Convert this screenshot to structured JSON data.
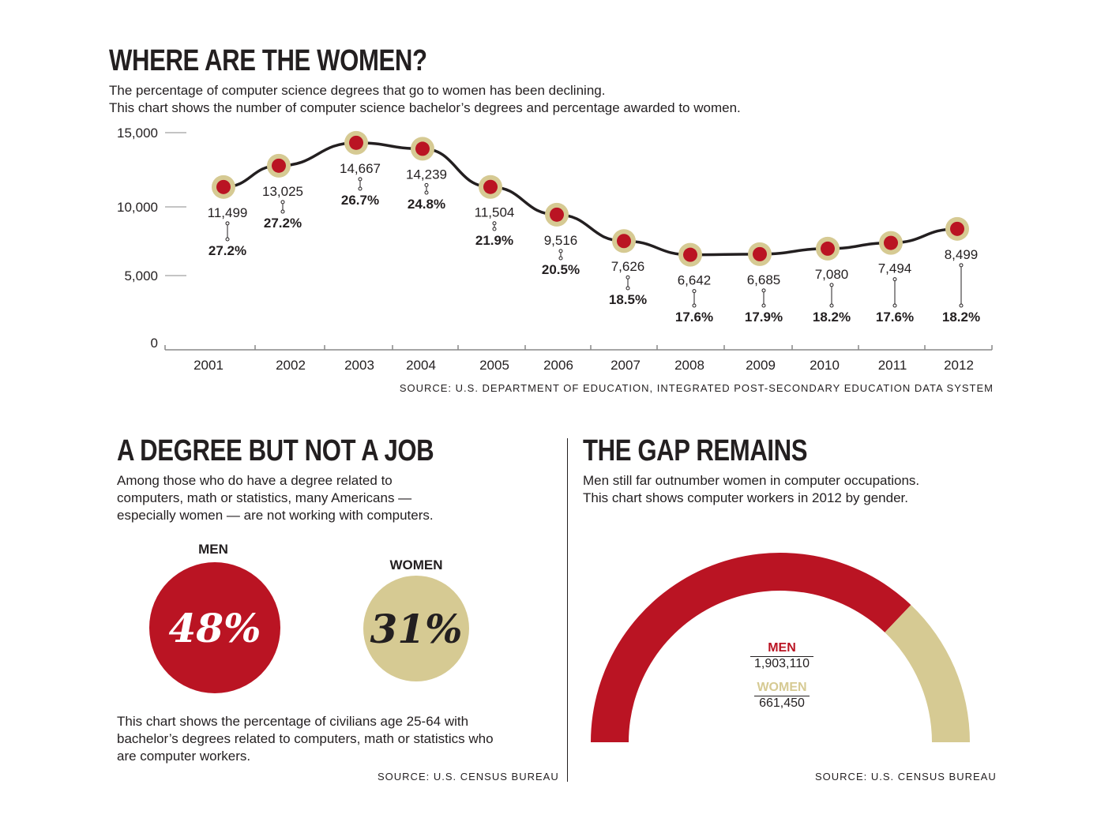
{
  "top": {
    "title": "WHERE ARE THE WOMEN?",
    "subtitle_line1": "The percentage of computer science degrees that go to women has been declining.",
    "subtitle_line2": "This chart shows the number of computer science bachelor’s degrees and percentage awarded to women.",
    "source": "SOURCE: U.S. DEPARTMENT OF EDUCATION, INTEGRATED POST-SECONDARY EDUCATION DATA SYSTEM"
  },
  "left": {
    "title": "A DEGREE BUT NOT A JOB",
    "intro_line1": "Among those who do have a degree related to",
    "intro_line2": "computers, math or statistics, many Americans —",
    "intro_line3": "especially women — are not working with computers.",
    "note_line1": "This chart shows the percentage of civilians age 25-64 with",
    "note_line2": "bachelor’s degrees related to computers, math or statistics who",
    "note_line3": "are computer workers.",
    "source": "SOURCE: U.S. CENSUS BUREAU"
  },
  "right": {
    "title": "THE GAP REMAINS",
    "intro_line1": "Men still far outnumber women in computer occupations.",
    "intro_line2": "This chart shows computer workers in 2012 by gender.",
    "source": "SOURCE: U.S. CENSUS BUREAU"
  },
  "colors": {
    "red": "#ba1423",
    "tan": "#d6ca93",
    "ink": "#231f20"
  },
  "chart_data": [
    {
      "type": "line",
      "x": [
        "2001",
        "2002",
        "2003",
        "2004",
        "2005",
        "2006",
        "2007",
        "2008",
        "2009",
        "2010",
        "2011",
        "2012"
      ],
      "series": [
        {
          "values": [
            11499,
            13025,
            14667,
            14239,
            11504,
            9516,
            7626,
            6642,
            6685,
            7080,
            7494,
            8499
          ],
          "value_labels": [
            "11,499",
            "13,025",
            "14,667",
            "14,239",
            "11,504",
            "9,516",
            "7,626",
            "6,642",
            "6,685",
            "7,080",
            "7,494",
            "8,499"
          ],
          "percent_women": [
            "27.2%",
            "27.2%",
            "26.7%",
            "24.8%",
            "21.9%",
            "20.5%",
            "18.5%",
            "17.6%",
            "17.9%",
            "18.2%",
            "17.6%",
            "18.2%"
          ]
        }
      ],
      "y_ticks": [
        "0",
        "5,000",
        "10,000",
        "15,000"
      ],
      "ylim": [
        0,
        15000
      ]
    },
    {
      "type": "bar",
      "categories": [
        "MEN",
        "WOMEN"
      ],
      "values": [
        48,
        31
      ],
      "value_labels": [
        "48%",
        "31%"
      ]
    },
    {
      "type": "pie",
      "categories": [
        "MEN",
        "WOMEN"
      ],
      "values": [
        1903110,
        661450
      ],
      "value_labels": [
        "1,903,110",
        "661,450"
      ]
    }
  ]
}
